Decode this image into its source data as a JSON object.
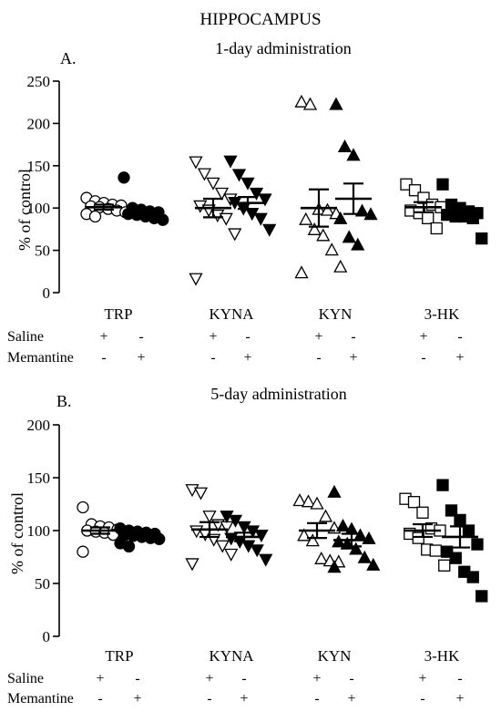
{
  "figure_title": "HIPPOCAMPUS",
  "row_labels": {
    "saline": "Saline",
    "memantine": "Memantine"
  },
  "chart_data": [
    {
      "type": "scatter",
      "panel_label": "A.",
      "title": "1-day administration",
      "xlabel": "",
      "ylabel": "% of control",
      "ylim": [
        0,
        250
      ],
      "yticks": [
        0,
        50,
        100,
        150,
        200,
        250
      ],
      "categories": [
        "TRP",
        "KYNA",
        "KYN",
        "3-HK"
      ],
      "treatment_rows": {
        "saline": [
          "+",
          "-",
          "+",
          "-",
          "+",
          "-",
          "+",
          "-"
        ],
        "memantine": [
          "-",
          "+",
          "-",
          "+",
          "-",
          "+",
          "-",
          "+"
        ]
      },
      "groups": [
        {
          "category": "TRP",
          "treatment": "Saline",
          "marker": "circle",
          "filled": false,
          "mean": 101,
          "sem": 3,
          "values": [
            112,
            108,
            106,
            104,
            103,
            102,
            101,
            99,
            97,
            95,
            93,
            90
          ]
        },
        {
          "category": "TRP",
          "treatment": "Memantine",
          "marker": "circle",
          "filled": true,
          "mean": 96,
          "sem": 4,
          "values": [
            136,
            100,
            98,
            96,
            95,
            93,
            92,
            90,
            88,
            86
          ]
        },
        {
          "category": "KYNA",
          "treatment": "Saline",
          "marker": "triangle-down",
          "filled": false,
          "mean": 100,
          "sem": 11,
          "values": [
            155,
            141,
            130,
            118,
            111,
            103,
            98,
            92,
            88,
            70,
            17
          ]
        },
        {
          "category": "KYNA",
          "treatment": "Memantine",
          "marker": "triangle-down",
          "filled": true,
          "mean": 106,
          "sem": 7,
          "values": [
            156,
            140,
            130,
            118,
            111,
            107,
            100,
            94,
            88,
            75
          ]
        },
        {
          "category": "KYN",
          "treatment": "Saline",
          "marker": "triangle-up",
          "filled": false,
          "mean": 100,
          "sem": 22,
          "values": [
            225,
            222,
            98,
            97,
            93,
            86,
            74,
            67,
            50,
            30,
            23
          ]
        },
        {
          "category": "KYN",
          "treatment": "Memantine",
          "marker": "triangle-up",
          "filled": true,
          "mean": 111,
          "sem": 18,
          "values": [
            222,
            172,
            162,
            96,
            92,
            87,
            65,
            56
          ]
        },
        {
          "category": "3-HK",
          "treatment": "Saline",
          "marker": "square",
          "filled": false,
          "mean": 101,
          "sem": 6,
          "values": [
            128,
            121,
            112,
            104,
            101,
            97,
            94,
            88,
            76
          ]
        },
        {
          "category": "3-HK",
          "treatment": "Memantine",
          "marker": "square",
          "filled": true,
          "mean": 94,
          "sem": 4,
          "values": [
            128,
            104,
            100,
            96,
            94,
            92,
            90,
            90,
            88,
            64
          ]
        }
      ]
    },
    {
      "type": "scatter",
      "panel_label": "B.",
      "title": "5-day administration",
      "xlabel": "",
      "ylabel": "% of control",
      "ylim": [
        0,
        200
      ],
      "yticks": [
        0,
        50,
        100,
        150,
        200
      ],
      "categories": [
        "TRP",
        "KYNA",
        "KYN",
        "3-HK"
      ],
      "treatment_rows": {
        "saline": [
          "+",
          "-",
          "+",
          "-",
          "+",
          "-",
          "+",
          "-"
        ],
        "memantine": [
          "-",
          "+",
          "-",
          "+",
          "-",
          "+",
          "-",
          "+"
        ]
      },
      "groups": [
        {
          "category": "TRP",
          "treatment": "Saline",
          "marker": "circle",
          "filled": false,
          "mean": 100,
          "sem": 3,
          "values": [
            122,
            106,
            104,
            103,
            101,
            100,
            99,
            98,
            96,
            90,
            80
          ]
        },
        {
          "category": "TRP",
          "treatment": "Memantine",
          "marker": "circle",
          "filled": true,
          "mean": 96,
          "sem": 2,
          "values": [
            102,
            100,
            99,
            98,
            97,
            96,
            95,
            94,
            93,
            92,
            88,
            85
          ]
        },
        {
          "category": "KYNA",
          "treatment": "Saline",
          "marker": "triangle-down",
          "filled": false,
          "mean": 101,
          "sem": 7,
          "values": [
            139,
            136,
            114,
            106,
            104,
            100,
            97,
            92,
            86,
            78,
            69
          ]
        },
        {
          "category": "KYNA",
          "treatment": "Memantine",
          "marker": "triangle-down",
          "filled": true,
          "mean": 94,
          "sem": 4,
          "values": [
            114,
            110,
            104,
            100,
            96,
            93,
            90,
            86,
            82,
            73
          ]
        },
        {
          "category": "KYN",
          "treatment": "Saline",
          "marker": "triangle-up",
          "filled": false,
          "mean": 100,
          "sem": 7,
          "values": [
            128,
            127,
            125,
            113,
            102,
            95,
            90,
            73,
            71,
            70
          ]
        },
        {
          "category": "KYN",
          "treatment": "Memantine",
          "marker": "triangle-up",
          "filled": true,
          "mean": 91,
          "sem": 6,
          "values": [
            136,
            104,
            101,
            95,
            92,
            89,
            87,
            82,
            74,
            67,
            65
          ]
        },
        {
          "category": "3-HK",
          "treatment": "Saline",
          "marker": "square",
          "filled": false,
          "mean": 100,
          "sem": 6,
          "values": [
            130,
            127,
            117,
            102,
            100,
            97,
            93,
            82,
            81,
            67
          ]
        },
        {
          "category": "3-HK",
          "treatment": "Memantine",
          "marker": "square",
          "filled": true,
          "mean": 94,
          "sem": 10,
          "values": [
            143,
            119,
            110,
            100,
            87,
            80,
            74,
            61,
            56,
            38
          ]
        }
      ]
    }
  ]
}
